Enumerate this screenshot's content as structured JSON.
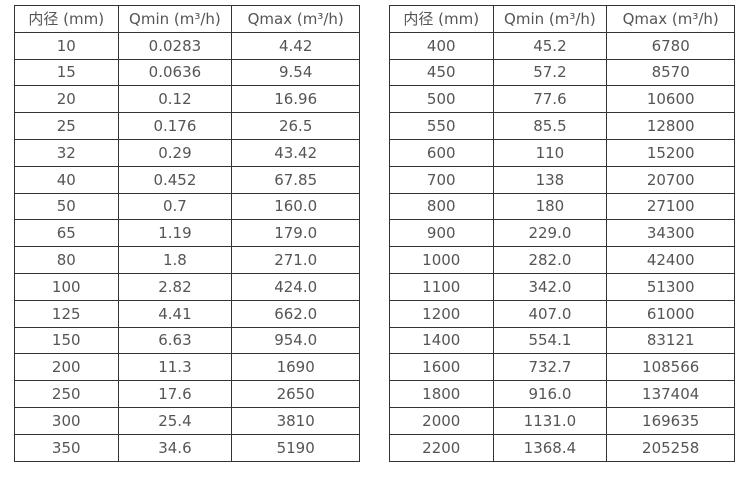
{
  "page": {
    "background_color": "#ffffff",
    "border_color": "#333333",
    "text_color": "#555555"
  },
  "tables": [
    {
      "name": "flow-spec-table-small-diameters",
      "headers": [
        "内径 (mm)",
        "Qmin (m³/h)",
        "Qmax (m³/h)"
      ],
      "rows": [
        [
          "10",
          "0.0283",
          "4.42"
        ],
        [
          "15",
          "0.0636",
          "9.54"
        ],
        [
          "20",
          "0.12",
          "16.96"
        ],
        [
          "25",
          "0.176",
          "26.5"
        ],
        [
          "32",
          "0.29",
          "43.42"
        ],
        [
          "40",
          "0.452",
          "67.85"
        ],
        [
          "50",
          "0.7",
          "160.0"
        ],
        [
          "65",
          "1.19",
          "179.0"
        ],
        [
          "80",
          "1.8",
          "271.0"
        ],
        [
          "100",
          "2.82",
          "424.0"
        ],
        [
          "125",
          "4.41",
          "662.0"
        ],
        [
          "150",
          "6.63",
          "954.0"
        ],
        [
          "200",
          "11.3",
          "1690"
        ],
        [
          "250",
          "17.6",
          "2650"
        ],
        [
          "300",
          "25.4",
          "3810"
        ],
        [
          "350",
          "34.6",
          "5190"
        ]
      ]
    },
    {
      "name": "flow-spec-table-large-diameters",
      "headers": [
        "内径 (mm)",
        "Qmin (m³/h)",
        "Qmax (m³/h)"
      ],
      "rows": [
        [
          "400",
          "45.2",
          "6780"
        ],
        [
          "450",
          "57.2",
          "8570"
        ],
        [
          "500",
          "77.6",
          "10600"
        ],
        [
          "550",
          "85.5",
          "12800"
        ],
        [
          "600",
          "110",
          "15200"
        ],
        [
          "700",
          "138",
          "20700"
        ],
        [
          "800",
          "180",
          "27100"
        ],
        [
          "900",
          "229.0",
          "34300"
        ],
        [
          "1000",
          "282.0",
          "42400"
        ],
        [
          "1100",
          "342.0",
          "51300"
        ],
        [
          "1200",
          "407.0",
          "61000"
        ],
        [
          "1400",
          "554.1",
          "83121"
        ],
        [
          "1600",
          "732.7",
          "108566"
        ],
        [
          "1800",
          "916.0",
          "137404"
        ],
        [
          "2000",
          "1131.0",
          "169635"
        ],
        [
          "2200",
          "1368.4",
          "205258"
        ]
      ]
    }
  ]
}
